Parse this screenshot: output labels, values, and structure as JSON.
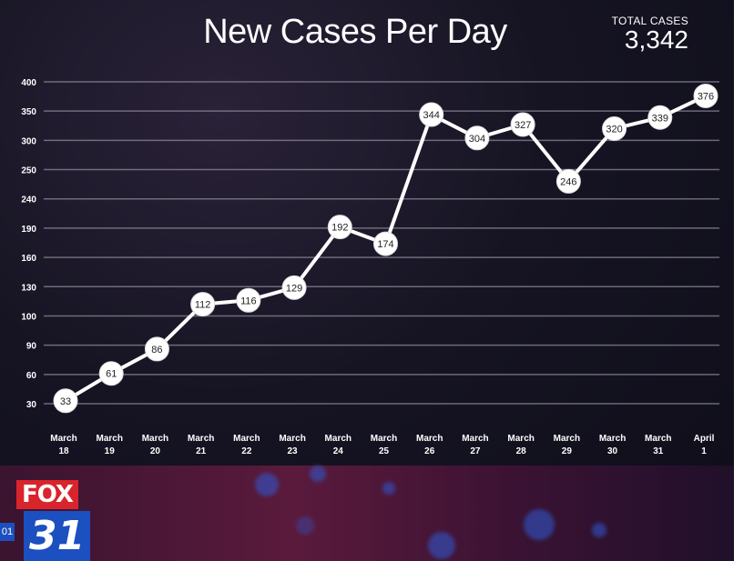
{
  "chart_data": {
    "type": "line",
    "title": "New Cases Per Day",
    "xlabel": "",
    "ylabel": "",
    "y_tick_labels": [
      "400",
      "350",
      "300",
      "250",
      "240",
      "190",
      "160",
      "130",
      "100",
      "90",
      "60",
      "30"
    ],
    "x_tick_labels": [
      {
        "month": "March",
        "day": "18"
      },
      {
        "month": "March",
        "day": "19"
      },
      {
        "month": "March",
        "day": "20"
      },
      {
        "month": "March",
        "day": "21"
      },
      {
        "month": "March",
        "day": "22"
      },
      {
        "month": "March",
        "day": "23"
      },
      {
        "month": "March",
        "day": "24"
      },
      {
        "month": "March",
        "day": "25"
      },
      {
        "month": "March",
        "day": "26"
      },
      {
        "month": "March",
        "day": "27"
      },
      {
        "month": "March",
        "day": "28"
      },
      {
        "month": "March",
        "day": "29"
      },
      {
        "month": "March",
        "day": "30"
      },
      {
        "month": "March",
        "day": "31"
      },
      {
        "month": "April",
        "day": "1"
      }
    ],
    "categories": [
      "March 18",
      "March 19",
      "March 20",
      "March 21",
      "March 22",
      "March 23",
      "March 24",
      "March 25",
      "March 26",
      "March 27",
      "March 28",
      "March 29",
      "March 30",
      "March 31",
      "April 1"
    ],
    "series": [
      {
        "values": [
          33,
          61,
          86,
          112,
          116,
          129,
          192,
          174,
          344,
          304,
          327,
          246,
          320,
          339,
          376
        ]
      }
    ],
    "grid": true,
    "legend": "none"
  },
  "total": {
    "label": "TOTAL CASES",
    "value": "3,342"
  },
  "logo": {
    "brand": "FOX",
    "channel": "31",
    "side_text": "01"
  },
  "colors": {
    "line": "#ffffff",
    "marker_fill": "#ffffff",
    "marker_text": "#222222",
    "grid": "#8a8796",
    "text": "#ffffff"
  }
}
